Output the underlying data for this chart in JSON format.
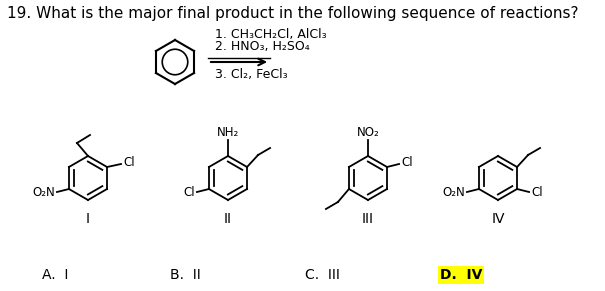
{
  "title": "19. What is the major final product in the following sequence of reactions?",
  "rxn_line1": "1. CH₃CH₂Cl, AlCl₃",
  "rxn_line2": "2. HNO₃, H₂SO₄",
  "rxn_line3": "3. Cl₂, FeCl₃",
  "answer_a": "A.  I",
  "answer_b": "B.  II",
  "answer_c": "C.  III",
  "answer_d": "D.  IV",
  "bg_color": "#ffffff",
  "text_color": "#000000",
  "highlight_color": "#ffff00",
  "title_fontsize": 11,
  "body_fontsize": 10,
  "small_fontsize": 9,
  "sub_fontsize": 8.5,
  "label_I": "I",
  "label_II": "II",
  "label_III": "III",
  "label_IV": "IV",
  "struct_I_sub1": "O₂N",
  "struct_I_sub2": "Cl",
  "struct_II_sub1": "NH₂",
  "struct_II_sub2": "Cl",
  "struct_III_sub1": "NO₂",
  "struct_III_sub2": "Cl",
  "struct_IV_sub1": "O₂N",
  "struct_IV_sub2": "Cl"
}
